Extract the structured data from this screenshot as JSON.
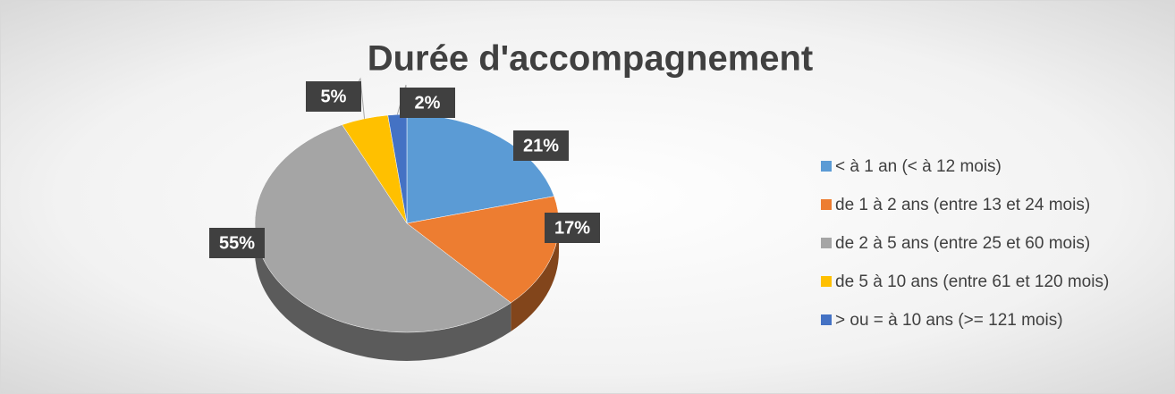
{
  "chart_data": {
    "type": "pie",
    "title": "Durée d'accompagnement",
    "categories": [
      "< à 1 an (< à 12 mois)",
      "de 1 à 2 ans (entre 13 et 24 mois)",
      "de 2 à 5 ans (entre 25 et 60 mois)",
      "de 5 à 10 ans (entre 61 et 120 mois)",
      "> ou = à 10 ans (>= 121 mois)"
    ],
    "values": [
      21,
      17,
      55,
      5,
      2
    ],
    "value_labels": [
      "21%",
      "17%",
      "55%",
      "5%",
      "2%"
    ],
    "colors": [
      "#5b9bd5",
      "#ed7d31",
      "#a5a5a5",
      "#ffc000",
      "#4472c4"
    ],
    "legend": "right"
  }
}
